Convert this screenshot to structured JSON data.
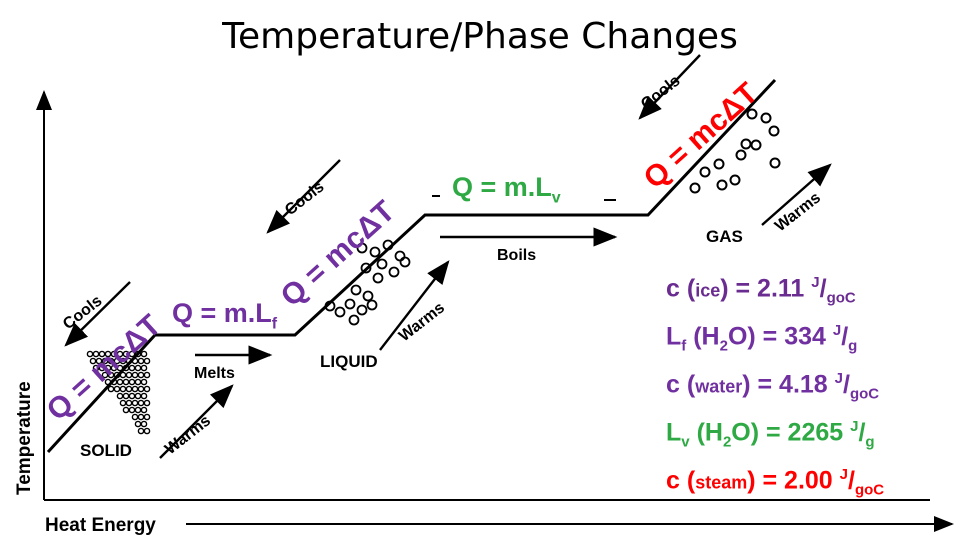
{
  "title": "Temperature/Phase Changes",
  "axes": {
    "y_label": "Temperature",
    "x_label": "Heat Energy"
  },
  "regions": {
    "solid": "SOLID",
    "liquid": "LIQUID",
    "gas": "GAS"
  },
  "arrows": {
    "melts": "Melts",
    "boils": "Boils",
    "warms": "Warms",
    "cools": "Cools"
  },
  "equations": {
    "sensible": "Q = mcΔT",
    "fusion": "Q = m.Lf",
    "vaporization": "Q = m.Lv"
  },
  "constants": [
    {
      "symbol": "c",
      "substance": "ice",
      "value": "2.11",
      "unit": "J/goC",
      "color": "#6a2c91"
    },
    {
      "symbol": "Lf",
      "substance": "H2O",
      "value": "334",
      "unit": "J/g",
      "color": "#7030a0"
    },
    {
      "symbol": "c",
      "substance": "water",
      "value": "4.18",
      "unit": "J/goC",
      "color": "#7030a0"
    },
    {
      "symbol": "Lv",
      "substance": "H2O",
      "value": "2265",
      "unit": "J/g",
      "color": "#2ea944"
    },
    {
      "symbol": "c",
      "substance": "steam",
      "value": "2.00",
      "unit": "J/goC",
      "color": "#ff0000"
    }
  ],
  "colors": {
    "purple": "#7030a0",
    "green": "#2ea944",
    "red": "#ff0000"
  }
}
